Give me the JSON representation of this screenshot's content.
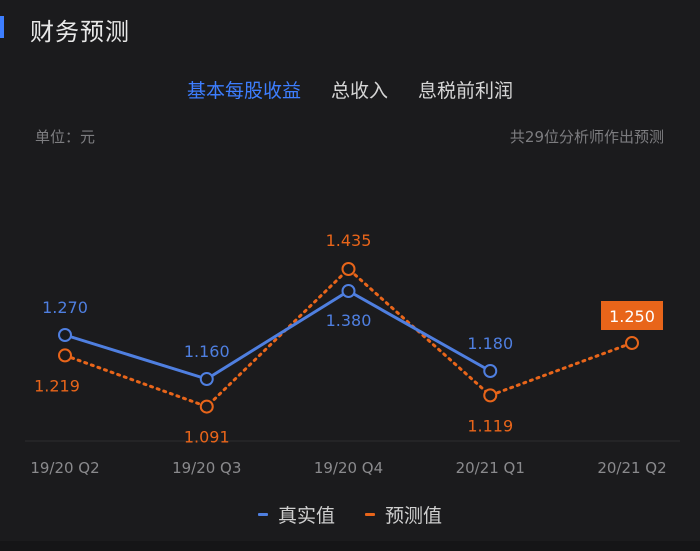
{
  "header": {
    "title": "财务预测"
  },
  "tabs": [
    {
      "label": "基本每股收益",
      "active": true
    },
    {
      "label": "总收入",
      "active": false
    },
    {
      "label": "息税前利润",
      "active": false
    }
  ],
  "unit_label": "单位：元",
  "analyst_note": "共29位分析师作出预测",
  "colors": {
    "accent": "#3d7eff",
    "actual": "#4f7fe0",
    "forecast": "#e8651a",
    "grid": "#2c2c2f",
    "tick": "#8a8a8d"
  },
  "chart_data": {
    "type": "line",
    "categories": [
      "19/20 Q2",
      "19/20 Q3",
      "19/20 Q4",
      "20/21 Q1",
      "20/21 Q2"
    ],
    "ylim": [
      1.0,
      1.5
    ],
    "series": [
      {
        "name": "真实值",
        "style": "solid",
        "values": [
          1.27,
          1.16,
          1.38,
          1.18,
          null
        ],
        "labels": [
          "1.270",
          "1.160",
          "1.380",
          "1.180",
          ""
        ]
      },
      {
        "name": "预测值",
        "style": "dotted",
        "values": [
          1.219,
          1.091,
          1.435,
          1.119,
          1.25
        ],
        "labels": [
          "1.219",
          "1.091",
          "1.435",
          "1.119",
          "1.250"
        ]
      }
    ],
    "highlight": {
      "series": "预测值",
      "category": "20/21 Q2",
      "label": "1.250"
    }
  },
  "legend": [
    {
      "label": "真实值",
      "color": "#4f7fe0"
    },
    {
      "label": "预测值",
      "color": "#e8651a"
    }
  ]
}
